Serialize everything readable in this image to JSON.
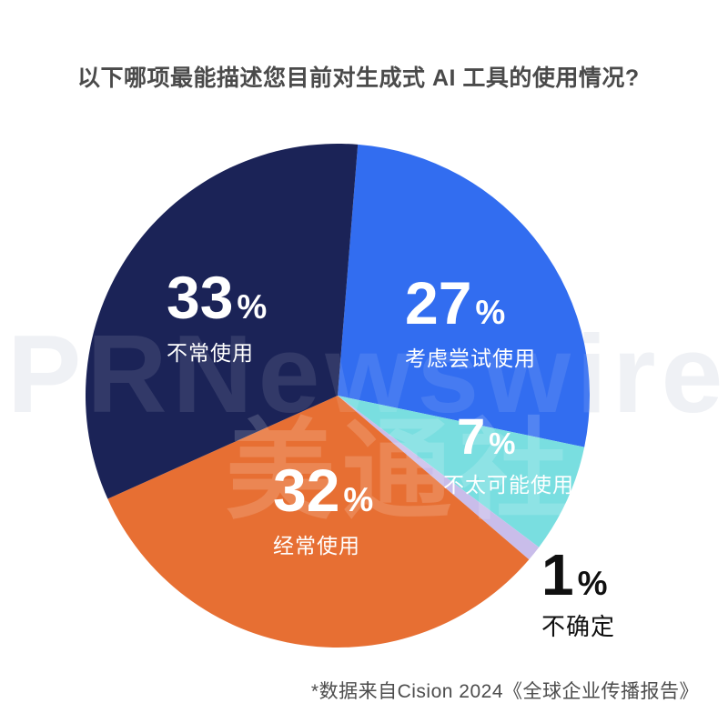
{
  "page": {
    "background": "#ffffff"
  },
  "header": {
    "title": "以下哪项最能描述您目前对生成式 AI 工具的使用情况?"
  },
  "watermark": {
    "brand": "PRNewswire",
    "registered_mark": "®",
    "cn_name": "美通社"
  },
  "chart_data": {
    "type": "pie",
    "title": "以下哪项最能描述您目前对生成式 AI 工具的使用情况?",
    "direction": "clockwise",
    "start_angle_deg": 4.6,
    "percent_symbol": "%",
    "legend_position": "on-slice",
    "slices": [
      {
        "category": "考虑尝试使用",
        "value": 27,
        "display": "27",
        "color": "#326df0",
        "label_color": "#ffffff"
      },
      {
        "category": "不太可能使用",
        "value": 7,
        "display": "7",
        "color": "#79dee0",
        "label_color": "#ffffff"
      },
      {
        "category": "不确定",
        "value": 1,
        "display": "1",
        "color": "#c9bdea",
        "label_color": "#101010",
        "label_outside": true
      },
      {
        "category": "经常使用",
        "value": 32,
        "display": "32",
        "color": "#e76f33",
        "label_color": "#ffffff"
      },
      {
        "category": "不常使用",
        "value": 33,
        "display": "33",
        "color": "#1b2357",
        "label_color": "#ffffff"
      }
    ]
  },
  "footer": {
    "source_note": "*数据来自Cision 2024《全球企业传播报告》"
  }
}
